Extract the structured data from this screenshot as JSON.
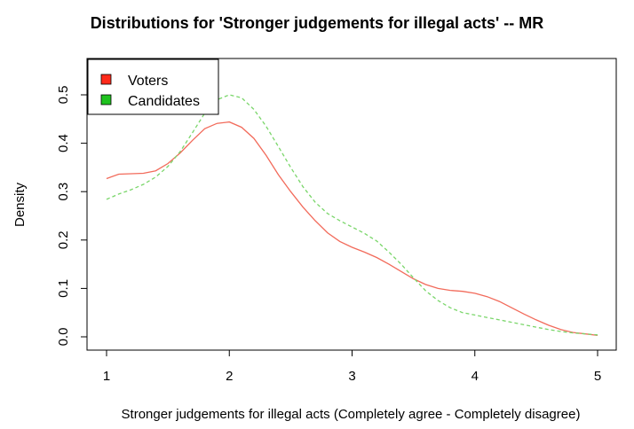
{
  "chart_data": {
    "type": "line",
    "title": "Distributions for 'Stronger judgements for illegal acts' -- MR",
    "xlabel": "Stronger judgements for illegal acts (Completely agree - Completely disagree)",
    "ylabel": "Density",
    "xlim": [
      1,
      5
    ],
    "ylim": [
      0,
      0.5
    ],
    "x_ticks": [
      "1",
      "2",
      "3",
      "4",
      "5"
    ],
    "y_ticks": [
      "0.0",
      "0.1",
      "0.2",
      "0.3",
      "0.4",
      "0.5"
    ],
    "grid": false,
    "legend_position": "top-left",
    "series": [
      {
        "name": "Voters",
        "color": "#f26b5b",
        "line_style": "solid",
        "legend_color": "#ff2a1a",
        "points": [
          [
            1.0,
            0.327
          ],
          [
            1.1,
            0.336
          ],
          [
            1.2,
            0.337
          ],
          [
            1.3,
            0.338
          ],
          [
            1.4,
            0.343
          ],
          [
            1.5,
            0.358
          ],
          [
            1.6,
            0.38
          ],
          [
            1.7,
            0.406
          ],
          [
            1.8,
            0.43
          ],
          [
            1.9,
            0.441
          ],
          [
            2.0,
            0.444
          ],
          [
            2.1,
            0.433
          ],
          [
            2.2,
            0.41
          ],
          [
            2.3,
            0.375
          ],
          [
            2.4,
            0.335
          ],
          [
            2.5,
            0.3
          ],
          [
            2.6,
            0.268
          ],
          [
            2.7,
            0.24
          ],
          [
            2.8,
            0.215
          ],
          [
            2.9,
            0.197
          ],
          [
            3.0,
            0.185
          ],
          [
            3.1,
            0.175
          ],
          [
            3.2,
            0.164
          ],
          [
            3.3,
            0.15
          ],
          [
            3.4,
            0.135
          ],
          [
            3.5,
            0.12
          ],
          [
            3.6,
            0.108
          ],
          [
            3.7,
            0.1
          ],
          [
            3.8,
            0.096
          ],
          [
            3.9,
            0.094
          ],
          [
            4.0,
            0.09
          ],
          [
            4.1,
            0.083
          ],
          [
            4.2,
            0.073
          ],
          [
            4.3,
            0.06
          ],
          [
            4.4,
            0.047
          ],
          [
            4.5,
            0.035
          ],
          [
            4.6,
            0.024
          ],
          [
            4.7,
            0.015
          ],
          [
            4.8,
            0.009
          ],
          [
            4.9,
            0.006
          ],
          [
            5.0,
            0.003
          ]
        ]
      },
      {
        "name": "Candidates",
        "color": "#7ad66a",
        "line_style": "dashed",
        "legend_color": "#1fc21f",
        "points": [
          [
            1.0,
            0.284
          ],
          [
            1.1,
            0.295
          ],
          [
            1.2,
            0.304
          ],
          [
            1.3,
            0.315
          ],
          [
            1.4,
            0.33
          ],
          [
            1.5,
            0.352
          ],
          [
            1.6,
            0.383
          ],
          [
            1.7,
            0.422
          ],
          [
            1.8,
            0.462
          ],
          [
            1.9,
            0.49
          ],
          [
            2.0,
            0.5
          ],
          [
            2.1,
            0.494
          ],
          [
            2.2,
            0.47
          ],
          [
            2.3,
            0.435
          ],
          [
            2.4,
            0.393
          ],
          [
            2.5,
            0.35
          ],
          [
            2.6,
            0.31
          ],
          [
            2.7,
            0.278
          ],
          [
            2.8,
            0.255
          ],
          [
            2.9,
            0.24
          ],
          [
            3.0,
            0.227
          ],
          [
            3.1,
            0.214
          ],
          [
            3.2,
            0.198
          ],
          [
            3.3,
            0.175
          ],
          [
            3.4,
            0.15
          ],
          [
            3.5,
            0.122
          ],
          [
            3.6,
            0.095
          ],
          [
            3.7,
            0.075
          ],
          [
            3.8,
            0.06
          ],
          [
            3.9,
            0.05
          ],
          [
            4.0,
            0.045
          ],
          [
            4.1,
            0.04
          ],
          [
            4.2,
            0.035
          ],
          [
            4.3,
            0.03
          ],
          [
            4.4,
            0.025
          ],
          [
            4.5,
            0.02
          ],
          [
            4.6,
            0.015
          ],
          [
            4.7,
            0.011
          ],
          [
            4.8,
            0.008
          ],
          [
            4.9,
            0.006
          ],
          [
            5.0,
            0.004
          ]
        ]
      }
    ]
  }
}
